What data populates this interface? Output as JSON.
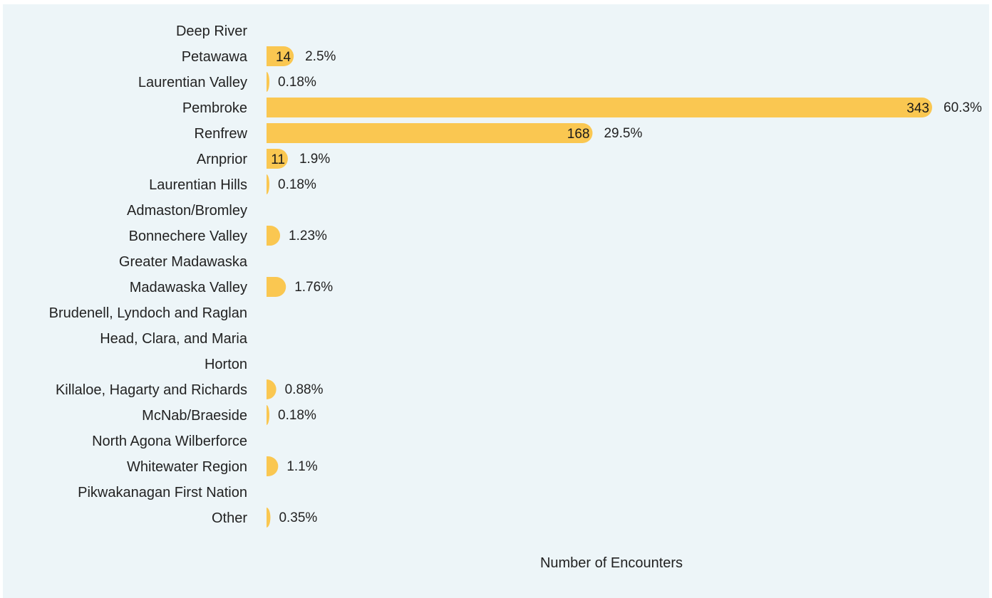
{
  "chart_data": {
    "type": "bar",
    "orientation": "horizontal",
    "categories": [
      "Deep River",
      "Petawawa",
      "Laurentian Valley",
      "Pembroke",
      "Renfrew",
      "Arnprior",
      "Laurentian Hills",
      "Admaston/Bromley",
      "Bonnechere Valley",
      "Greater Madawaska",
      "Madawaska Valley",
      "Brudenell, Lyndoch and Raglan",
      "Head, Clara, and Maria",
      "Horton",
      "Killaloe, Hagarty and Richards",
      "McNab/Braeside",
      "North Agona Wilberforce",
      "Whitewater Region",
      "Pikwakanagan First Nation",
      "Other"
    ],
    "values": [
      0,
      14,
      1,
      343,
      168,
      11,
      1,
      0,
      7,
      0,
      10,
      0,
      0,
      0,
      5,
      1,
      0,
      6,
      0,
      2
    ],
    "value_labels": [
      "",
      "14",
      "",
      "343",
      "168",
      "11",
      "",
      "",
      "",
      "",
      "",
      "",
      "",
      "",
      "",
      "",
      "",
      "",
      "",
      ""
    ],
    "percent_labels": [
      "",
      "2.5%",
      "0.18%",
      "60.3%",
      "29.5%",
      "1.9%",
      "0.18%",
      "",
      "1.23%",
      "",
      "1.76%",
      "",
      "",
      "",
      "0.88%",
      "0.18%",
      "",
      "1.1%",
      "",
      "0.35%"
    ],
    "xlabel": "Number of Encounters",
    "xlim": [
      0,
      343
    ],
    "grid": false,
    "bar_color": "#fac751",
    "background_color": "#edf5f8"
  }
}
